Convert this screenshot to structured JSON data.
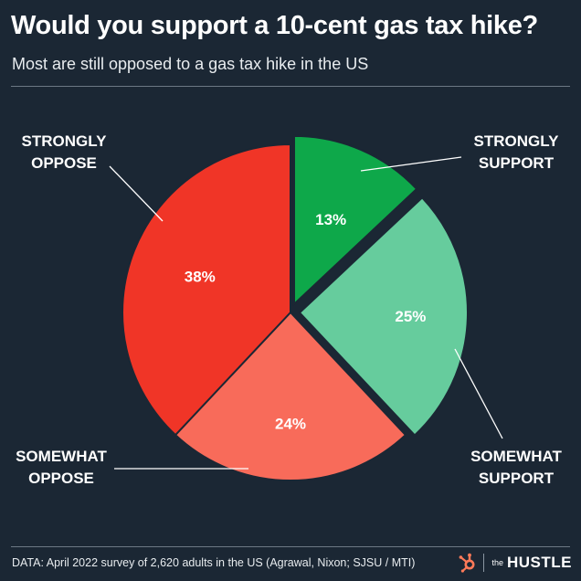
{
  "header": {
    "title": "Would you support a 10-cent gas tax hike?",
    "subtitle": "Most are still opposed to a gas tax hike in the US"
  },
  "chart_data": {
    "type": "pie",
    "title": "Would you support a 10-cent gas tax hike?",
    "subtitle": "Most are still opposed to a gas tax hike in the US",
    "slices": [
      {
        "label": "STRONGLY SUPPORT",
        "value": 13,
        "value_label": "13%",
        "color": "#0ea84a",
        "exploded": true
      },
      {
        "label": "SOMEWHAT SUPPORT",
        "value": 25,
        "value_label": "25%",
        "color": "#66cc9d",
        "exploded": true
      },
      {
        "label": "SOMEWHAT OPPOSE",
        "value": 24,
        "value_label": "24%",
        "color": "#f86b5a",
        "exploded": false
      },
      {
        "label": "STRONGLY OPPOSE",
        "value": 38,
        "value_label": "38%",
        "color": "#f03527",
        "exploded": false
      }
    ],
    "label_lines": {
      "STRONGLY SUPPORT": [
        "STRONGLY",
        "SUPPORT"
      ],
      "SOMEWHAT SUPPORT": [
        "SOMEWHAT",
        "SUPPORT"
      ],
      "SOMEWHAT OPPOSE": [
        "SOMEWHAT",
        "OPPOSE"
      ],
      "STRONGLY OPPOSE": [
        "STRONGLY",
        "OPPOSE"
      ]
    }
  },
  "footer": {
    "source": "DATA: April 2022 survey of 2,620 adults in the US (Agrawal, Nixon; SJSU / MTI)",
    "brand_the": "the",
    "brand_name": "HUSTLE",
    "brand_icon": "hubspot-sprocket-icon",
    "brand_icon_color": "#ff7a59"
  }
}
